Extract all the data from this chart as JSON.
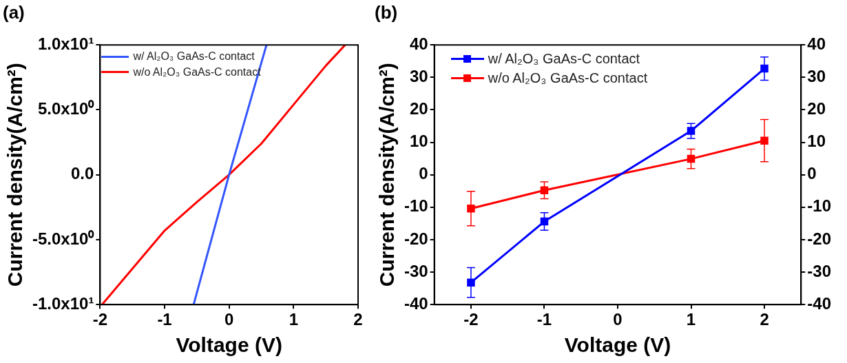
{
  "chart_data": [
    {
      "type": "line",
      "title": "(a)",
      "xlabel": "Voltage (V)",
      "ylabel": "Current density(A/cm²)",
      "legend": "top left",
      "marker": "none",
      "line_style": "solid",
      "grid": false,
      "xlim": [
        -2,
        2
      ],
      "xticks": [
        -2,
        -1,
        0,
        1,
        2
      ],
      "ylim": [
        -10,
        10
      ],
      "yticks": [
        {
          "value": -10,
          "label": "-1.0x10¹"
        },
        {
          "value": -5,
          "label": "-5.0x10⁰"
        },
        {
          "value": 0,
          "label": "0.0"
        },
        {
          "value": 5,
          "label": "5.0x10⁰"
        },
        {
          "value": 10,
          "label": "1.0x10¹"
        }
      ],
      "series": [
        {
          "name": "w/ Al₂O₃ GaAs-C contact",
          "color": "#3355ff",
          "x": [
            -0.55,
            0,
            0.58
          ],
          "values": [
            -10,
            0,
            10
          ]
        },
        {
          "name": "w/o Al₂O₃ GaAs-C contact",
          "color": "#ff0000",
          "x": [
            -1.97,
            -1,
            -0.5,
            0,
            0.5,
            1,
            1.5,
            1.8
          ],
          "values": [
            -10,
            -4.3,
            -2.1,
            0,
            2.4,
            5.4,
            8.4,
            10
          ]
        }
      ]
    },
    {
      "type": "line",
      "title": "(b)",
      "xlabel": "Voltage (V)",
      "ylabel": "Current density(A/cm²)",
      "legend": "top left",
      "marker": "square",
      "line_style": "solid",
      "grid": false,
      "xlim": [
        -2.5,
        2.5
      ],
      "xticks": [
        -2,
        -1,
        0,
        1,
        2
      ],
      "ylim": [
        -40,
        40
      ],
      "yticks": [
        -40,
        -30,
        -20,
        -10,
        0,
        10,
        20,
        30,
        40
      ],
      "y2lim": [
        -40,
        40
      ],
      "y2ticks": [
        -40,
        -30,
        -20,
        -10,
        0,
        10,
        20,
        30,
        40
      ],
      "series": [
        {
          "name": "w/ Al₂O₃ GaAs-C contact",
          "color": "#0000ff",
          "x": [
            -2,
            -1,
            1,
            2
          ],
          "values": [
            -33.2,
            -14.4,
            13.5,
            32.7
          ],
          "errors": [
            4.6,
            2.7,
            2.3,
            3.6
          ]
        },
        {
          "name": "w/o Al₂O₃ GaAs-C contact",
          "color": "#ff0000",
          "x": [
            -2,
            -1,
            1,
            2
          ],
          "values": [
            -10.4,
            -4.8,
            4.9,
            10.5
          ],
          "errors": [
            5.3,
            2.6,
            3.0,
            6.5
          ]
        }
      ]
    }
  ]
}
